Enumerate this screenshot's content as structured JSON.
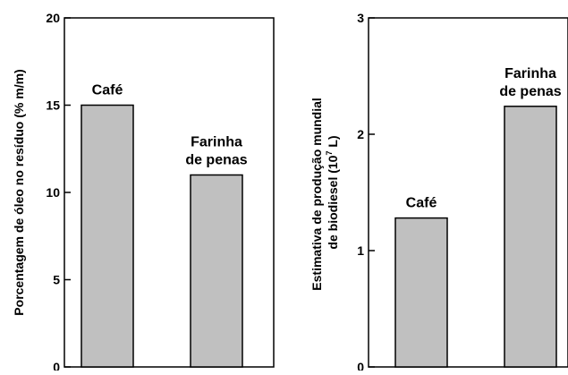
{
  "chart_data": [
    {
      "type": "bar",
      "categories": [
        "Café",
        "Farinha de penas"
      ],
      "category_label_lines": [
        [
          "Café"
        ],
        [
          "Farinha",
          "de penas"
        ]
      ],
      "values": [
        15,
        11
      ],
      "ylim": [
        0,
        20
      ],
      "yticks": [
        0,
        5,
        10,
        15,
        20
      ],
      "ylabel": "Porcentagem de óleo no resíduo (% m/m)",
      "xlabel": "",
      "title": "",
      "bar_color": "#c0c0c0",
      "grid": false
    },
    {
      "type": "bar",
      "categories": [
        "Café",
        "Farinha de penas"
      ],
      "category_label_lines": [
        [
          "Café"
        ],
        [
          "Farinha",
          "de penas"
        ]
      ],
      "values": [
        1.28,
        2.24
      ],
      "ylim": [
        0,
        3
      ],
      "yticks": [
        0,
        1,
        2,
        3
      ],
      "ylabel_lines": [
        "Estimativa de produção mundial",
        "de biodiesel (10",
        "7",
        " L)"
      ],
      "xlabel": "",
      "title": "",
      "bar_color": "#c0c0c0",
      "grid": false
    }
  ]
}
